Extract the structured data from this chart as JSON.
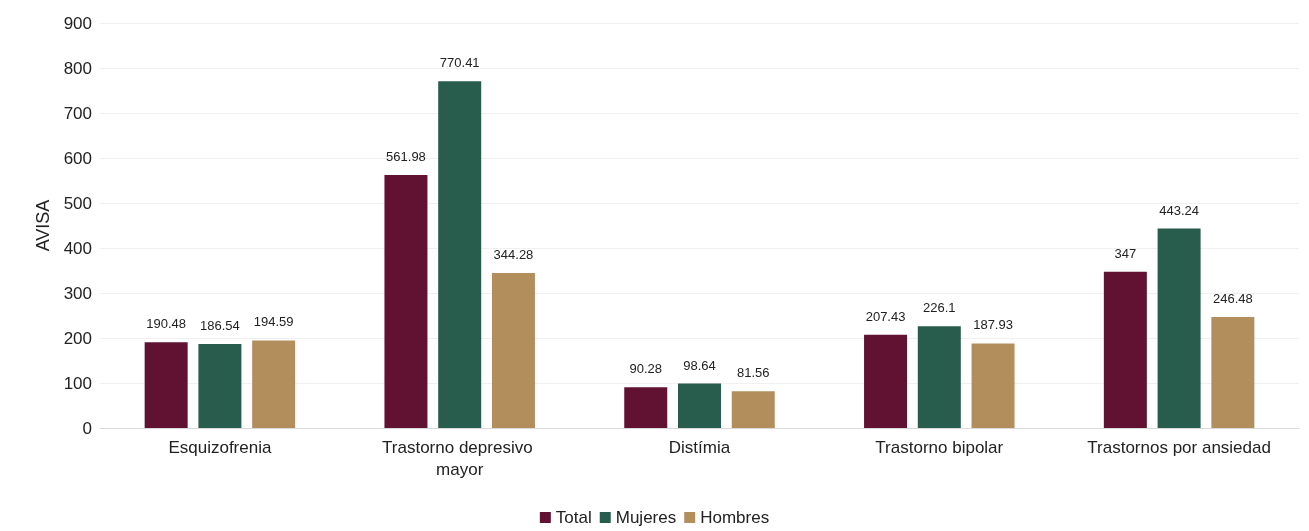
{
  "chart_data": {
    "type": "bar",
    "ylabel": "AVISA",
    "categories": [
      "Esquizofrenia",
      "Trastorno depresivo mayor",
      "Distímia",
      "Trastorno bipolar",
      "Trastornos por ansiedad"
    ],
    "series": [
      {
        "name": "Total",
        "color": "#611232",
        "values": [
          190.48,
          561.98,
          90.28,
          207.43,
          347
        ]
      },
      {
        "name": "Mujeres",
        "color": "#285c4d",
        "values": [
          186.54,
          770.41,
          98.64,
          226.1,
          443.24
        ]
      },
      {
        "name": "Hombres",
        "color": "#b38e5d",
        "values": [
          194.59,
          344.28,
          81.56,
          187.93,
          246.48
        ]
      }
    ],
    "ylim": [
      0,
      900
    ],
    "yticks": [
      0,
      100,
      200,
      300,
      400,
      500,
      600,
      700,
      800,
      900
    ],
    "grid": "y",
    "legend": "bottom",
    "data_labels": true
  }
}
